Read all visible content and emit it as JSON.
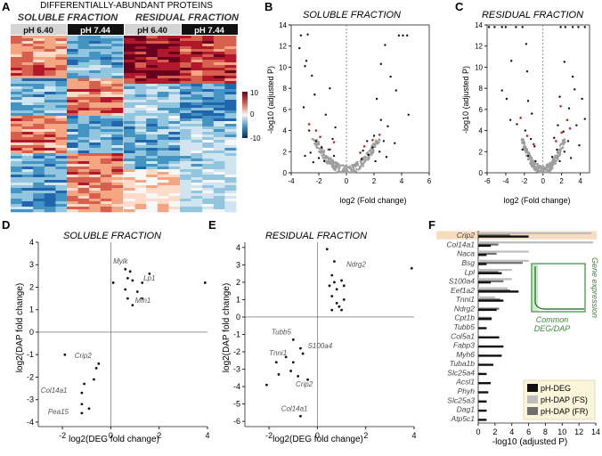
{
  "colors": {
    "red": "#b2182b",
    "blue": "#2166ac",
    "grey": "#9e9e9e",
    "green": "#3a8c3a",
    "highlight": "#f7dcc0"
  },
  "panelA": {
    "letter": "A",
    "title": "DIFFERENTIALLY-ABUNDANT PROTEINS",
    "soluble": "SOLUBLE FRACTION",
    "residual": "RESIDUAL FRACTION",
    "ph1": "pH 6.40",
    "ph2": "pH 7.44",
    "colorbar_ticks": [
      "10",
      "0",
      "-10"
    ]
  },
  "panelB": {
    "letter": "B",
    "title": "SOLUBLE FRACTION",
    "ylabel": "-log10 (adjusted P)",
    "xlabel": "log2 (Fold change)",
    "xticks": [
      "-4",
      "-2",
      "0",
      "2",
      "4",
      "6"
    ],
    "yticks": [
      "0",
      "2",
      "4",
      "6",
      "8",
      "10",
      "12",
      "14"
    ]
  },
  "panelC": {
    "letter": "C",
    "title": "RESIDUAL FRACTION",
    "ylabel": "-log10 (adjusted P)",
    "xlabel": "log2 (Fold change)",
    "xticks": [
      "-6",
      "-4",
      "-2",
      "0",
      "2",
      "4"
    ],
    "yticks": [
      "0",
      "2",
      "4",
      "6",
      "8",
      "10",
      "12",
      "14"
    ]
  },
  "panelD": {
    "letter": "D",
    "title": "SOLUBLE FRACTION",
    "xlabel": "log2(DEG fold change)",
    "ylabel": "log2(DAP fold change)",
    "xticks": [
      "-2",
      "0",
      "2",
      "4"
    ],
    "yticks": [
      "-4",
      "-3",
      "-2",
      "-1",
      "0",
      "1",
      "2",
      "3",
      "4"
    ],
    "genes": [
      "Mylk",
      "Lp1",
      "Mfn1",
      "Crip2",
      "Col14a1",
      "Pea15"
    ]
  },
  "panelE": {
    "letter": "E",
    "title": "RESIDUAL FRACTION",
    "xlabel": "log2(DEG fold change)",
    "ylabel": "log2(DAP fold change)",
    "xticks": [
      "-2",
      "0",
      "2",
      "4"
    ],
    "yticks": [
      "-6",
      "-5",
      "-4",
      "-3",
      "-2",
      "-1",
      "0",
      "1",
      "2",
      "3",
      "4"
    ],
    "genes": [
      "Ndrg2",
      "Tubb5",
      "Tnni1",
      "S100a4",
      "Crip2",
      "Col14a1"
    ]
  },
  "panelF": {
    "letter": "F",
    "xlabel": "-log10 (adjusted P)",
    "xticks": [
      "0",
      "2",
      "4",
      "6",
      "8",
      "10",
      "12",
      "14"
    ],
    "inset_title": "Gene expression",
    "inset_label1": "Common",
    "inset_label2": "DEG/DAP",
    "legend": [
      "pH-DEG",
      "pH-DAP (FS)",
      "pH-DAP (FR)"
    ],
    "genes": [
      "Crip2",
      "Col14a1",
      "Naca",
      "Bsg",
      "Lpl",
      "S100a4",
      "Eef1a2",
      "Tnni1",
      "Ndrg2",
      "Cpt1b",
      "Tubb5",
      "Col5a1",
      "Fabp3",
      "Myh6",
      "Tuba1b",
      "Slc25a4",
      "Acsl1",
      "Phyh",
      "Slc25a3",
      "Dag1",
      "Atp5c1"
    ]
  },
  "chart_data": [
    {
      "type": "heatmap",
      "title": "DIFFERENTIALLY-ABUNDANT PROTEINS",
      "columns": [
        "SOLUBLE pH 6.40",
        "SOLUBLE pH 7.44",
        "RESIDUAL pH 6.40",
        "RESIDUAL pH 7.44"
      ],
      "colorbar_range": [
        -10,
        10
      ]
    },
    {
      "type": "scatter",
      "title": "SOLUBLE FRACTION",
      "xlabel": "log2 (Fold change)",
      "ylabel": "-log10 (adjusted P)",
      "xlim": [
        -4,
        6
      ],
      "ylim": [
        0,
        14
      ],
      "points_black": [
        [
          -3.3,
          13
        ],
        [
          -2.8,
          13.1
        ],
        [
          -3.4,
          11.8
        ],
        [
          -2.9,
          10.6
        ],
        [
          -3.0,
          10.1
        ],
        [
          -2.5,
          9.2
        ],
        [
          -1.2,
          8.0
        ],
        [
          -2.3,
          7.4
        ],
        [
          -3.1,
          6.2
        ],
        [
          -1.5,
          5.5
        ],
        [
          -0.8,
          4.3
        ],
        [
          -2.7,
          4.0
        ],
        [
          -1.0,
          3.2
        ],
        [
          -2.2,
          3.0
        ],
        [
          -1.8,
          2.4
        ],
        [
          -1.2,
          2.2
        ],
        [
          -2.6,
          1.9
        ],
        [
          -3.0,
          1.6
        ],
        [
          -0.9,
          1.6
        ],
        [
          -2.0,
          1.4
        ],
        [
          -1.6,
          1.1
        ],
        [
          -2.4,
          1.0
        ],
        [
          3.8,
          13
        ],
        [
          4.1,
          13
        ],
        [
          4.4,
          13
        ],
        [
          2.8,
          12.1
        ],
        [
          2.5,
          10.3
        ],
        [
          3.2,
          9.1
        ],
        [
          3.6,
          7.8
        ],
        [
          2.2,
          7.0
        ],
        [
          4.5,
          5.5
        ],
        [
          2.5,
          5.0
        ],
        [
          3.0,
          4.4
        ],
        [
          2.0,
          3.5
        ],
        [
          1.5,
          3.0
        ],
        [
          2.7,
          3.0
        ],
        [
          3.5,
          2.8
        ],
        [
          1.9,
          2.4
        ],
        [
          1.2,
          2.1
        ],
        [
          2.4,
          2.0
        ],
        [
          1.6,
          1.7
        ],
        [
          2.9,
          1.5
        ],
        [
          1.1,
          1.3
        ],
        [
          2.1,
          1.1
        ]
      ],
      "points_red": [
        [
          -2.7,
          4.6
        ],
        [
          -2.2,
          4.0
        ],
        [
          -1.9,
          3.4
        ],
        [
          -1.3,
          2.2
        ],
        [
          -0.9,
          2.9
        ],
        [
          1.3,
          2.5
        ],
        [
          1.9,
          3.1
        ],
        [
          2.4,
          3.6
        ],
        [
          1.0,
          1.9
        ]
      ]
    },
    {
      "type": "scatter",
      "title": "RESIDUAL FRACTION",
      "xlabel": "log2 (Fold change)",
      "ylabel": "-log10 (adjusted P)",
      "xlim": [
        -6,
        5
      ],
      "ylim": [
        0,
        14
      ],
      "points_black": [
        [
          -5.8,
          13.8
        ],
        [
          -5.2,
          13.8
        ],
        [
          -4.4,
          13.8
        ],
        [
          -4.0,
          13.8
        ],
        [
          -2.9,
          13.8
        ],
        [
          -2.2,
          13.8
        ],
        [
          1.9,
          13.8
        ],
        [
          2.4,
          13.8
        ],
        [
          3.2,
          13.8
        ],
        [
          3.8,
          13.8
        ],
        [
          4.5,
          13.8
        ],
        [
          -1.8,
          12.2
        ],
        [
          -3.4,
          10.6
        ],
        [
          -1.7,
          9.6
        ],
        [
          -4.4,
          7.8
        ],
        [
          -3.9,
          7.0
        ],
        [
          -1.6,
          6.8
        ],
        [
          -1.2,
          5.6
        ],
        [
          -3.5,
          5.0
        ],
        [
          -2.8,
          4.6
        ],
        [
          -1.9,
          4.0
        ],
        [
          -1.3,
          3.2
        ],
        [
          -0.9,
          2.5
        ],
        [
          -2.2,
          2.2
        ],
        [
          -1.6,
          1.6
        ],
        [
          -0.8,
          1.1
        ],
        [
          2.3,
          10.5
        ],
        [
          3.2,
          9.1
        ],
        [
          3.4,
          7.9
        ],
        [
          1.8,
          7.2
        ],
        [
          4.2,
          7.0
        ],
        [
          2.8,
          6.1
        ],
        [
          4.5,
          5.1
        ],
        [
          1.6,
          4.5
        ],
        [
          3.6,
          4.5
        ],
        [
          2.2,
          3.9
        ],
        [
          1.2,
          3.3
        ],
        [
          2.7,
          3.0
        ],
        [
          3.9,
          2.6
        ],
        [
          1.5,
          2.2
        ],
        [
          2.3,
          2.0
        ],
        [
          1.0,
          1.5
        ],
        [
          3.0,
          1.4
        ],
        [
          1.8,
          1.1
        ]
      ],
      "points_red": [
        [
          -2.4,
          5.2
        ],
        [
          -1.7,
          3.5
        ],
        [
          -1.0,
          2.7
        ],
        [
          1.9,
          6.3
        ],
        [
          2.6,
          5.0
        ],
        [
          1.4,
          3.0
        ],
        [
          2.0,
          3.8
        ],
        [
          2.9,
          4.2
        ]
      ]
    },
    {
      "type": "scatter",
      "title": "SOLUBLE FRACTION",
      "xlabel": "log2(DEG fold change)",
      "ylabel": "log2(DAP fold change)",
      "xlim": [
        -3,
        4
      ],
      "ylim": [
        -4.2,
        4
      ],
      "points": [
        [
          0.1,
          2.2
        ],
        [
          0.6,
          2.8
        ],
        [
          0.8,
          2.7
        ],
        [
          0.7,
          2.4
        ],
        [
          0.9,
          2.3
        ],
        [
          1.6,
          2.6
        ],
        [
          1.3,
          2.2
        ],
        [
          0.6,
          1.9
        ],
        [
          1.1,
          1.8
        ],
        [
          0.7,
          1.5
        ],
        [
          0.9,
          1.2
        ],
        [
          1.3,
          1.5
        ],
        [
          3.9,
          2.2
        ],
        [
          -1.9,
          -1.0
        ],
        [
          -0.5,
          -1.4
        ],
        [
          -0.6,
          -1.6
        ],
        [
          -0.7,
          -2.1
        ],
        [
          -1.1,
          -2.3
        ],
        [
          -1.2,
          -2.7
        ],
        [
          -1.2,
          -3.2
        ],
        [
          -0.9,
          -3.4
        ],
        [
          -1.2,
          -3.6
        ]
      ],
      "labels": [
        "Mylk",
        "Lp1",
        "Mfn1",
        "Crip2",
        "Col14a1",
        "Pea15"
      ]
    },
    {
      "type": "scatter",
      "title": "RESIDUAL FRACTION",
      "xlabel": "log2(DEG fold change)",
      "ylabel": "log2(DAP fold change)",
      "xlim": [
        -3,
        4
      ],
      "ylim": [
        -6.3,
        4.3
      ],
      "points": [
        [
          0.4,
          3.9
        ],
        [
          0.7,
          3.2
        ],
        [
          0.6,
          2.4
        ],
        [
          0.7,
          2.0
        ],
        [
          0.5,
          1.8
        ],
        [
          0.8,
          1.6
        ],
        [
          1.0,
          2.1
        ],
        [
          1.1,
          1.8
        ],
        [
          0.6,
          1.2
        ],
        [
          0.8,
          0.8
        ],
        [
          1.1,
          1.0
        ],
        [
          0.9,
          0.6
        ],
        [
          0.6,
          0.4
        ],
        [
          1.0,
          0.4
        ],
        [
          3.9,
          2.8
        ],
        [
          -1.0,
          -1.3
        ],
        [
          -0.7,
          -1.8
        ],
        [
          -0.6,
          -2.1
        ],
        [
          -1.3,
          -2.3
        ],
        [
          -1.0,
          -2.6
        ],
        [
          -1.1,
          -3.1
        ],
        [
          -1.6,
          -3.3
        ],
        [
          -0.8,
          -3.4
        ],
        [
          -2.1,
          -3.9
        ],
        [
          -0.4,
          -3.6
        ],
        [
          -1.7,
          -2.6
        ],
        [
          -0.7,
          -5.7
        ]
      ],
      "labels": [
        "Ndrg2",
        "Tubb5",
        "Tnni1",
        "S100a4",
        "Crip2",
        "Col14a1"
      ]
    },
    {
      "type": "bar",
      "orientation": "horizontal",
      "xlabel": "-log10 (adjusted P)",
      "xlim": [
        0,
        14
      ],
      "categories": [
        "Crip2",
        "Col14a1",
        "Naca",
        "Bsg",
        "Lpl",
        "S100a4",
        "Eef1a2",
        "Tnni1",
        "Ndrg2",
        "Cpt1b",
        "Tubb5",
        "Col5a1",
        "Fabp3",
        "Myh6",
        "Tuba1b",
        "Slc25a4",
        "Acsl1",
        "Phyh",
        "Slc25a3",
        "Dag1",
        "Atp5c1"
      ],
      "series": [
        {
          "name": "pH-DEG",
          "values": [
            6.0,
            1.5,
            1.0,
            1.0,
            2.8,
            1.5,
            4.8,
            3.0,
            2.2,
            1.6,
            1.0,
            2.5,
            3.0,
            2.8,
            1.8,
            1.0,
            1.5,
            1.2,
            1.0,
            1.0,
            1.0
          ]
        },
        {
          "name": "pH-DAP (FS)",
          "values": [
            13.5,
            13.7,
            6.0,
            6.0,
            4.0,
            4.0,
            3.5,
            2.0,
            0,
            0,
            0,
            0,
            0,
            0,
            0,
            0,
            0,
            0,
            0,
            0,
            0
          ]
        },
        {
          "name": "pH-DAP (FR)",
          "values": [
            3.8,
            2.4,
            2.2,
            5.3,
            2.4,
            3.0,
            3.8,
            2.6,
            2.5,
            1.6,
            0,
            0,
            0,
            0,
            0,
            0,
            0,
            0,
            0,
            0,
            0
          ]
        }
      ]
    }
  ]
}
